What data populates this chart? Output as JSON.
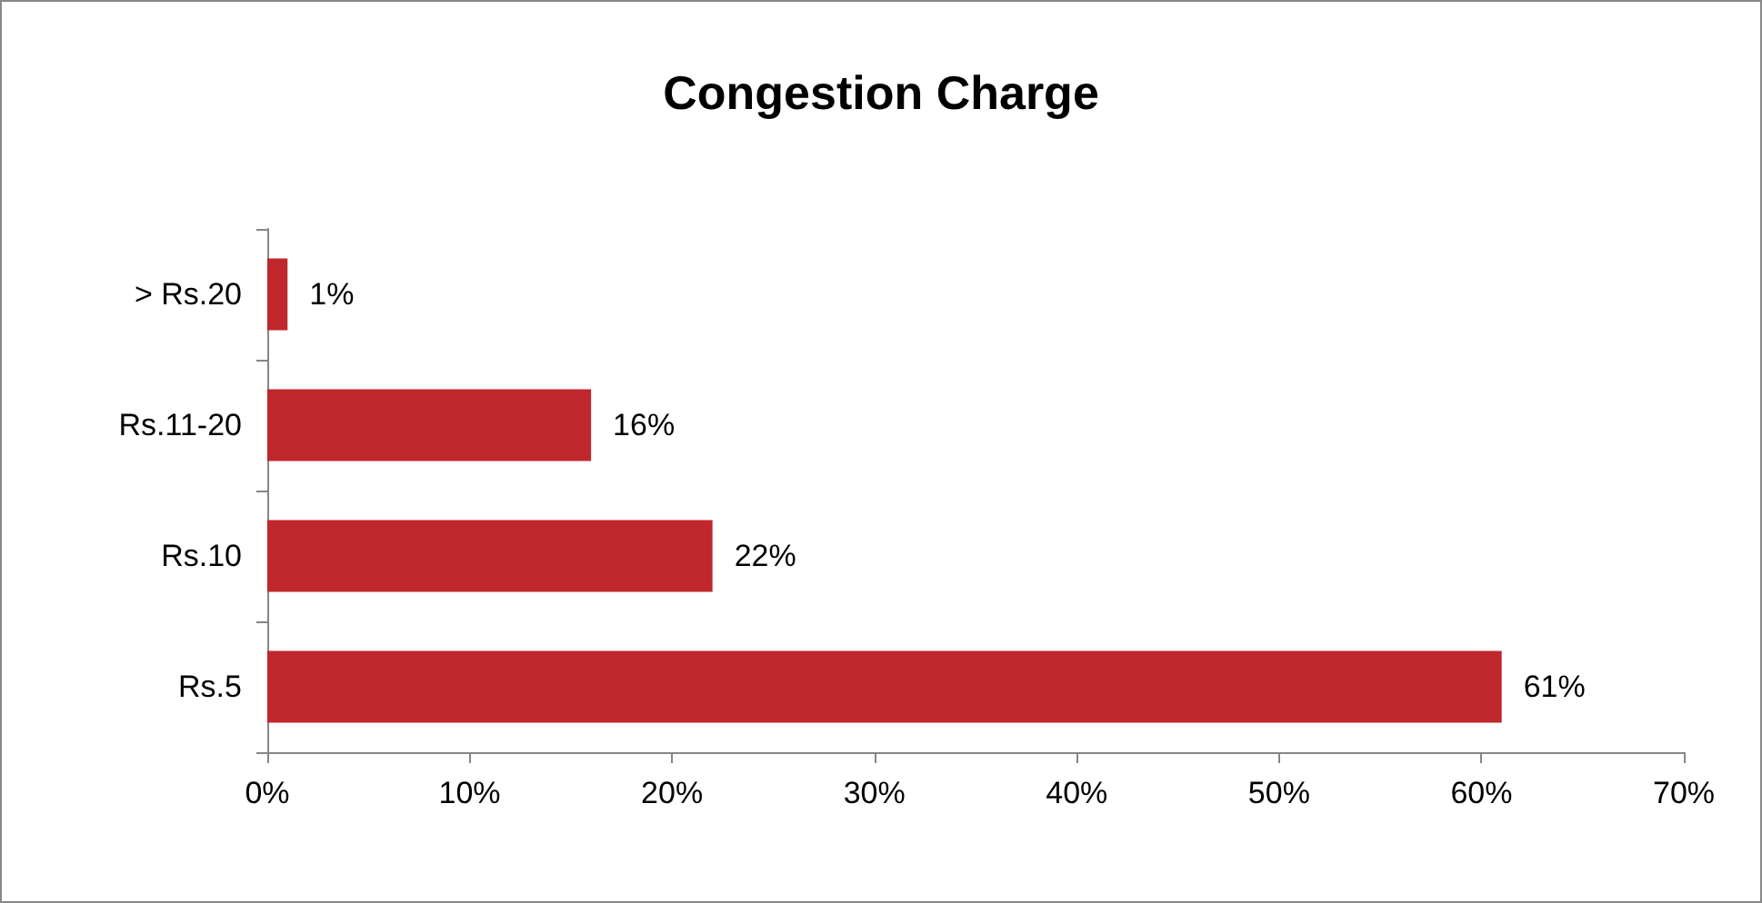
{
  "chart_data": {
    "type": "bar",
    "orientation": "horizontal",
    "title": "Congestion Charge",
    "categories": [
      "> Rs.20",
      "Rs.11-20",
      "Rs.10",
      "Rs.5"
    ],
    "values": [
      1,
      16,
      22,
      61
    ],
    "value_labels": [
      "1%",
      "16%",
      "22%",
      "61%"
    ],
    "color": "#c0272d",
    "xlim": [
      0,
      70
    ],
    "xticks": [
      {
        "value": 0,
        "label": "0%"
      },
      {
        "value": 10,
        "label": "10%"
      },
      {
        "value": 20,
        "label": "20%"
      },
      {
        "value": 30,
        "label": "30%"
      },
      {
        "value": 40,
        "label": "40%"
      },
      {
        "value": 50,
        "label": "50%"
      },
      {
        "value": 60,
        "label": "60%"
      },
      {
        "value": 70,
        "label": "70%"
      }
    ],
    "grid": false
  }
}
